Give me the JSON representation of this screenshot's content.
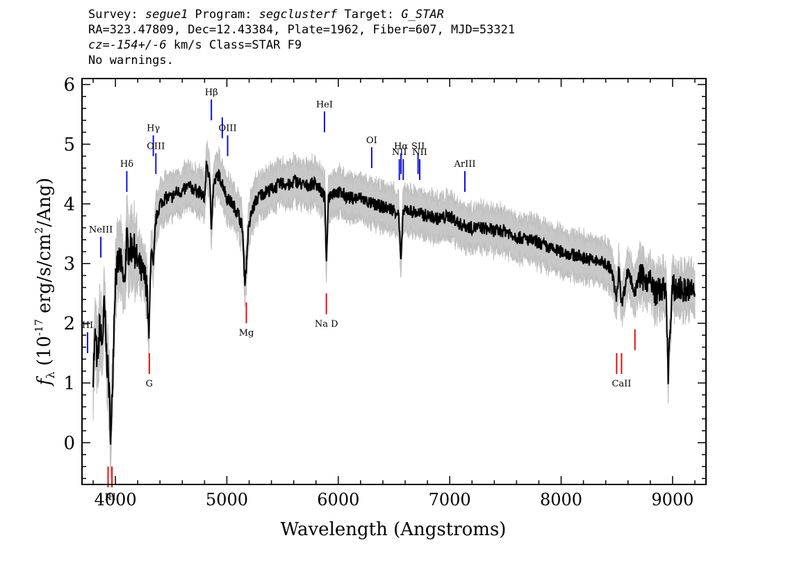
{
  "header": {
    "line1": {
      "survey_label": "Survey: ",
      "survey": "segue1",
      "program_label": " Program: ",
      "program": "segclusterf",
      "target_label": " Target: ",
      "target": "G_STAR"
    },
    "line2": "RA=323.47809, Dec=12.43384, Plate=1962, Fiber=607, MJD=53321",
    "line3": {
      "cz": "cz=-154+/-6",
      "rest": " km/s Class=STAR F9"
    },
    "line4": "No warnings."
  },
  "chart_data": {
    "type": "line",
    "xlabel": "Wavelength (Angstroms)",
    "ylabel_prefix": "f",
    "ylabel_sub": "λ",
    "ylabel_unit_a": " (10",
    "ylabel_exp1": "-17",
    "ylabel_unit_b": " erg/s/cm",
    "ylabel_exp2": "2",
    "ylabel_unit_c": "/Ang)",
    "xlim": [
      3700,
      9300
    ],
    "ylim": [
      -0.7,
      6.1
    ],
    "xticks": [
      {
        "value": 4000,
        "label": "4000"
      },
      {
        "value": 5000,
        "label": "5000"
      },
      {
        "value": 6000,
        "label": "6000"
      },
      {
        "value": 7000,
        "label": "7000"
      },
      {
        "value": 8000,
        "label": "8000"
      },
      {
        "value": 9000,
        "label": "9000"
      }
    ],
    "yticks": [
      {
        "value": 0,
        "label": "0"
      },
      {
        "value": 1,
        "label": "1"
      },
      {
        "value": 2,
        "label": "2"
      },
      {
        "value": 3,
        "label": "3"
      },
      {
        "value": 4,
        "label": "4"
      },
      {
        "value": 5,
        "label": "5"
      },
      {
        "value": 6,
        "label": "6"
      }
    ],
    "series": [
      {
        "color": "#000000",
        "x": [
          3800,
          3820,
          3840,
          3860,
          3880,
          3900,
          3920,
          3940,
          3960,
          3980,
          4000,
          4040,
          4080,
          4100,
          4120,
          4160,
          4200,
          4250,
          4280,
          4300,
          4320,
          4340,
          4360,
          4400,
          4450,
          4500,
          4550,
          4600,
          4650,
          4700,
          4750,
          4800,
          4820,
          4850,
          4860,
          4880,
          4920,
          4960,
          5000,
          5050,
          5100,
          5140,
          5160,
          5175,
          5190,
          5220,
          5260,
          5300,
          5400,
          5500,
          5580,
          5600,
          5700,
          5800,
          5850,
          5880,
          5893,
          5910,
          5950,
          6000,
          6100,
          6200,
          6300,
          6400,
          6500,
          6540,
          6563,
          6580,
          6620,
          6700,
          6800,
          6900,
          7000,
          7100,
          7200,
          7300,
          7400,
          7500,
          7600,
          7700,
          7800,
          7900,
          8000,
          8100,
          8200,
          8300,
          8400,
          8450,
          8498,
          8520,
          8542,
          8600,
          8662,
          8700,
          8800,
          8850,
          8900,
          8940,
          8960,
          9000,
          9100,
          9200
        ],
        "y": [
          1.2,
          1.8,
          1.3,
          2.0,
          1.6,
          2.3,
          1.5,
          1.0,
          0.0,
          1.5,
          2.8,
          3.1,
          2.6,
          3.4,
          3.2,
          3.3,
          3.0,
          2.8,
          2.7,
          1.7,
          3.3,
          2.9,
          3.7,
          4.0,
          4.1,
          4.1,
          4.2,
          4.2,
          4.3,
          4.25,
          4.2,
          4.1,
          4.7,
          4.3,
          3.6,
          4.3,
          4.5,
          4.35,
          4.1,
          4.0,
          3.85,
          3.6,
          2.7,
          2.95,
          3.5,
          3.85,
          4.05,
          4.15,
          4.25,
          4.35,
          4.3,
          4.4,
          4.3,
          4.35,
          4.2,
          4.1,
          2.9,
          4.1,
          4.2,
          4.2,
          4.1,
          4.1,
          4.0,
          3.95,
          3.9,
          3.85,
          3.0,
          3.85,
          3.9,
          3.85,
          3.8,
          3.75,
          3.8,
          3.65,
          3.6,
          3.6,
          3.55,
          3.55,
          3.45,
          3.4,
          3.35,
          3.25,
          3.2,
          3.15,
          3.1,
          3.05,
          3.0,
          2.9,
          2.4,
          2.95,
          2.3,
          2.9,
          2.5,
          2.8,
          2.7,
          2.5,
          2.6,
          2.5,
          1.2,
          2.6,
          2.55,
          2.55
        ]
      }
    ],
    "lines_blue": [
      {
        "x": 3750,
        "label": "HI",
        "y": 1.5
      },
      {
        "x": 3869,
        "label": "NeIII",
        "y": 3.1
      },
      {
        "x": 4102,
        "label": "Hδ",
        "y": 4.2
      },
      {
        "x": 4340,
        "label": "Hγ",
        "y": 4.8
      },
      {
        "x": 4363,
        "label": "OIII",
        "y": 4.5
      },
      {
        "x": 4861,
        "label": "Hβ",
        "y": 5.4
      },
      {
        "x": 4959,
        "label": "",
        "y": 5.1
      },
      {
        "x": 5007,
        "label": "OIII",
        "y": 4.8
      },
      {
        "x": 5876,
        "label": "HeI",
        "y": 5.2
      },
      {
        "x": 6300,
        "label": "OI",
        "y": 4.6
      },
      {
        "x": 6548,
        "label": "NII",
        "y": 4.4
      },
      {
        "x": 6563,
        "label": "Hα",
        "y": 4.5
      },
      {
        "x": 6583,
        "label": "",
        "y": 4.4
      },
      {
        "x": 6716,
        "label": "SII",
        "y": 4.5
      },
      {
        "x": 6731,
        "label": "NII",
        "y": 4.4
      },
      {
        "x": 7136,
        "label": "ArIII",
        "y": 4.2
      }
    ],
    "lines_red": [
      {
        "x": 3934,
        "label": "K",
        "y": -0.4
      },
      {
        "x": 3969,
        "label": "H",
        "y": -0.4
      },
      {
        "x": 4304,
        "label": "G",
        "y": 1.5
      },
      {
        "x": 5175,
        "label": "Mg",
        "y": 2.35
      },
      {
        "x": 5893,
        "label": "Na D",
        "y": 2.5
      },
      {
        "x": 8498,
        "label": "",
        "y": 1.5
      },
      {
        "x": 8542,
        "label": "CaII",
        "y": 1.5
      },
      {
        "x": 8662,
        "label": "",
        "y": 1.9
      }
    ]
  }
}
